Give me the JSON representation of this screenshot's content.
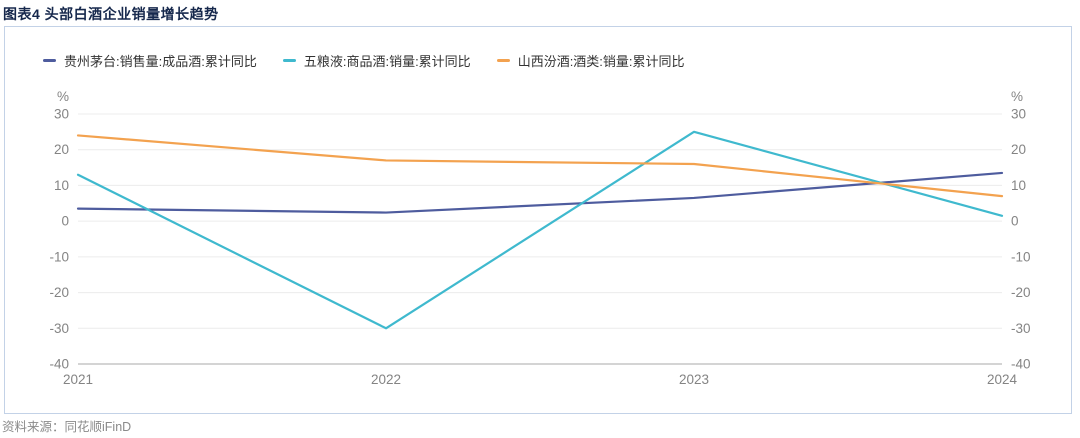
{
  "page": {
    "title": "图表4  头部白酒企业销量增长趋势",
    "source": "资料来源：同花顺iFinD"
  },
  "colors": {
    "title_text": "#16284C",
    "panel_border": "#C3D2E7",
    "legend_text": "#333333",
    "axis_text": "#848484",
    "gridline": "#ECECEC",
    "axis_line": "#A8A8A8",
    "series_moutai": "#4E5C9E",
    "series_wuliangye": "#3FB9CE",
    "series_fenjiu": "#F3A24F"
  },
  "chart_data": {
    "type": "line",
    "categories": [
      "2021",
      "2022",
      "2023",
      "2024"
    ],
    "series": [
      {
        "name": "贵州茅台:销售量:成品酒:累计同比",
        "color": "#4E5C9E",
        "values": [
          3.5,
          2.4,
          6.5,
          13.5
        ]
      },
      {
        "name": "五粮液:商品酒:销量:累计同比",
        "color": "#3FB9CE",
        "values": [
          13,
          -30,
          25,
          1.5
        ]
      },
      {
        "name": "山西汾酒:酒类:销量:累计同比",
        "color": "#F3A24F",
        "values": [
          24,
          17,
          16,
          7
        ]
      }
    ],
    "unit": "%",
    "ylim": [
      -40,
      30
    ],
    "ytick_step": 10,
    "grid": true,
    "legend_position": "top-left",
    "dual_axis": true
  }
}
